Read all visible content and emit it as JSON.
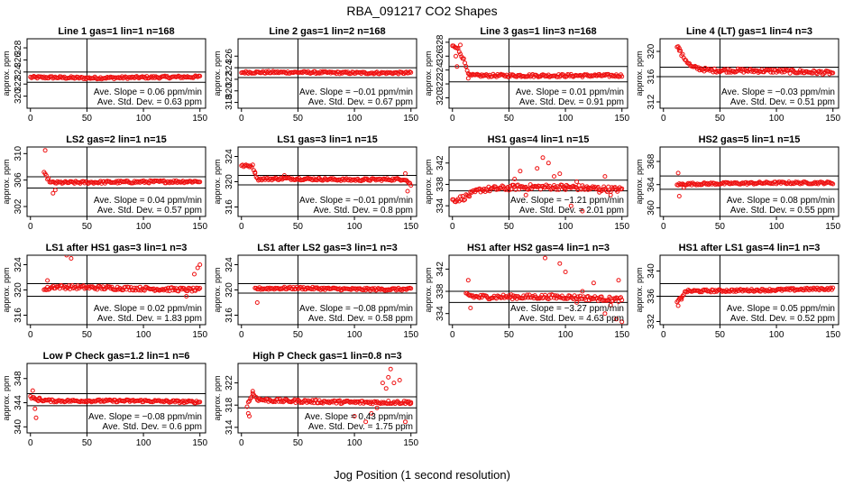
{
  "title": "RBA_091217  CO2 Shapes",
  "xlabel": "Jog Position (1 second resolution)",
  "marker_color": "#ee1111",
  "chart_data": [
    {
      "type": "scatter",
      "title": "Line 1 gas=1 lin=1 n=168",
      "ylabel": "approx. ppm",
      "xlim": [
        -3,
        155
      ],
      "ylim": [
        318,
        329.5
      ],
      "xticks": [
        0,
        50,
        100,
        150
      ],
      "yticks": [
        320,
        322,
        324,
        326,
        328
      ],
      "hlines": [
        324,
        322.3
      ],
      "vline": 50,
      "slope_text": "Ave. Slope =  0.06  ppm/min",
      "std_text": "Ave. Std. Dev. =  0.63  ppm",
      "series": [
        {
          "base": [
            [
              0,
              323.1
            ],
            [
              20,
              323.1
            ],
            [
              50,
              323.0
            ],
            [
              100,
              323.1
            ],
            [
              150,
              323.2
            ]
          ],
          "scatter": 0.2,
          "spikes": []
        }
      ]
    },
    {
      "type": "scatter",
      "title": "Line 2 gas=1 lin=2 n=168",
      "ylabel": "approx. ppm",
      "xlim": [
        -3,
        155
      ],
      "ylim": [
        317,
        329
      ],
      "xticks": [
        0,
        50,
        100,
        150
      ],
      "yticks": [
        318,
        320,
        322,
        324,
        326
      ],
      "hlines": [
        324,
        322.3
      ],
      "vline": 50,
      "slope_text": "Ave. Slope =  −0.01  ppm/min",
      "std_text": "Ave. Std. Dev. =  0.67  ppm",
      "series": [
        {
          "base": [
            [
              0,
              323.2
            ],
            [
              50,
              323.2
            ],
            [
              100,
              323.1
            ],
            [
              150,
              323.1
            ]
          ],
          "scatter": 0.2,
          "spikes": []
        }
      ]
    },
    {
      "type": "scatter",
      "title": "Line 3 gas=1 lin=3 n=168",
      "ylabel": "approx. ppm",
      "xlim": [
        -3,
        155
      ],
      "ylim": [
        318.5,
        328.5
      ],
      "xticks": [
        0,
        50,
        100,
        150
      ],
      "yticks": [
        320,
        322,
        324,
        326,
        328
      ],
      "hlines": [
        324.5,
        322.3
      ],
      "vline": 50,
      "slope_text": "Ave. Slope =  0.01  ppm/min",
      "std_text": "Ave. Std. Dev. =  0.91  ppm",
      "series": [
        {
          "base": [
            [
              0,
              327.5
            ],
            [
              5,
              327.0
            ],
            [
              10,
              325.5
            ],
            [
              15,
              323.2
            ],
            [
              30,
              323.2
            ],
            [
              100,
              323.2
            ],
            [
              150,
              323.2
            ]
          ],
          "scatter": 0.2,
          "spikes": [
            [
              3,
              326
            ],
            [
              4,
              324.5
            ],
            [
              7,
              327.6
            ],
            [
              12,
              324.5
            ],
            [
              14,
              322.8
            ]
          ]
        }
      ]
    },
    {
      "type": "scatter",
      "title": "Line 4 (LT) gas=1 lin=4 n=3",
      "ylabel": "approx. ppm",
      "xlim": [
        -3,
        155
      ],
      "ylim": [
        311,
        322
      ],
      "xticks": [
        0,
        50,
        100,
        150
      ],
      "yticks": [
        312,
        316,
        320
      ],
      "hlines": [
        317.5,
        316
      ],
      "vline": 50,
      "slope_text": "Ave. Slope =  −0.03  ppm/min",
      "std_text": "Ave. Std. Dev. =  0.51  ppm",
      "series": [
        {
          "base": [
            [
              12,
              321
            ],
            [
              16,
              319.5
            ],
            [
              25,
              317.5
            ],
            [
              40,
              317
            ],
            [
              100,
              316.9
            ],
            [
              150,
              316.6
            ]
          ],
          "scatter": 0.3,
          "spikes": [
            [
              14,
              320.5
            ]
          ]
        }
      ]
    },
    {
      "type": "scatter",
      "title": "LS2 gas=2 lin=1 n=15",
      "ylabel": "approx. ppm",
      "xlim": [
        -3,
        155
      ],
      "ylim": [
        300.5,
        311
      ],
      "xticks": [
        0,
        50,
        100,
        150
      ],
      "yticks": [
        302,
        306,
        310
      ],
      "hlines": [
        306.5,
        304.8
      ],
      "vline": 50,
      "slope_text": "Ave. Slope =  0.04  ppm/min",
      "std_text": "Ave. Std. Dev. =  0.57  ppm",
      "series": [
        {
          "base": [
            [
              12,
              307
            ],
            [
              18,
              305.6
            ],
            [
              150,
              305.8
            ]
          ],
          "scatter": 0.2,
          "spikes": [
            [
              13,
              310.5
            ],
            [
              20,
              304
            ],
            [
              22,
              304.5
            ]
          ]
        }
      ]
    },
    {
      "type": "scatter",
      "title": "LS1 gas=3 lin=1 n=15",
      "ylabel": "approx. ppm",
      "xlim": [
        -3,
        155
      ],
      "ylim": [
        314.5,
        325.5
      ],
      "xticks": [
        0,
        50,
        100,
        150
      ],
      "yticks": [
        316,
        320,
        324
      ],
      "hlines": [
        321,
        319.5
      ],
      "vline": 50,
      "slope_text": "Ave. Slope =  −0.01  ppm/min",
      "std_text": "Ave. Std. Dev. =  0.8  ppm",
      "series": [
        {
          "base": [
            [
              0,
              322.5
            ],
            [
              10,
              322.5
            ],
            [
              14,
              320.4
            ],
            [
              40,
              320.5
            ],
            [
              100,
              320.3
            ],
            [
              145,
              320.4
            ],
            [
              150,
              319.5
            ]
          ],
          "scatter": 0.2,
          "spikes": [
            [
              12,
              321.5
            ],
            [
              38,
              321
            ],
            [
              145,
              321.3
            ],
            [
              147,
              318.5
            ]
          ]
        }
      ]
    },
    {
      "type": "scatter",
      "title": "HS1 gas=4 lin=1 n=15",
      "ylabel": "approx. ppm",
      "xlim": [
        -3,
        155
      ],
      "ylim": [
        332,
        345
      ],
      "xticks": [
        0,
        50,
        100,
        150
      ],
      "yticks": [
        334,
        338,
        342
      ],
      "hlines": [
        338.8,
        336.8
      ],
      "vline": 50,
      "slope_text": "Ave. Slope =  −1.21  ppm/min",
      "std_text": "Ave. Std. Dev. =  2.01  ppm",
      "series": [
        {
          "base": [
            [
              0,
              335
            ],
            [
              10,
              335.5
            ],
            [
              25,
              337
            ],
            [
              60,
              337.5
            ],
            [
              100,
              337.5
            ],
            [
              150,
              337
            ]
          ],
          "scatter": 0.5,
          "spikes": [
            [
              55,
              339
            ],
            [
              60,
              340.5
            ],
            [
              65,
              336
            ],
            [
              75,
              341
            ],
            [
              80,
              343
            ],
            [
              85,
              342
            ],
            [
              90,
              339.5
            ],
            [
              95,
              340
            ],
            [
              100,
              337
            ],
            [
              105,
              334
            ],
            [
              110,
              338.5
            ],
            [
              115,
              333
            ],
            [
              120,
              337
            ],
            [
              130,
              336.5
            ],
            [
              135,
              339.5
            ],
            [
              140,
              336
            ]
          ]
        }
      ]
    },
    {
      "type": "scatter",
      "title": "HS2 gas=5 lin=1 n=15",
      "ylabel": "approx. ppm",
      "xlim": [
        -3,
        155
      ],
      "ylim": [
        358.5,
        370.5
      ],
      "xticks": [
        0,
        50,
        100,
        150
      ],
      "yticks": [
        360,
        364,
        368
      ],
      "hlines": [
        365.5,
        363.2
      ],
      "vline": 50,
      "slope_text": "Ave. Slope =  0.08  ppm/min",
      "std_text": "Ave. Std. Dev. =  0.55  ppm",
      "series": [
        {
          "base": [
            [
              12,
              364
            ],
            [
              20,
              364.1
            ],
            [
              100,
              364.3
            ],
            [
              150,
              364.3
            ]
          ],
          "scatter": 0.2,
          "spikes": [
            [
              13,
              366
            ],
            [
              14,
              362
            ],
            [
              18,
              363.5
            ]
          ]
        }
      ]
    },
    {
      "type": "scatter",
      "title": "LS1 after HS1 gas=3 lin=1 n=3",
      "ylabel": "approx. ppm",
      "xlim": [
        -3,
        155
      ],
      "ylim": [
        314.5,
        325.5
      ],
      "xticks": [
        0,
        50,
        100,
        150
      ],
      "yticks": [
        316,
        320,
        324
      ],
      "hlines": [
        321,
        319
      ],
      "vline": 50,
      "slope_text": "Ave. Slope =  0.02  ppm/min",
      "std_text": "Ave. Std. Dev. =  1.83  ppm",
      "series": [
        {
          "base": [
            [
              12,
              320
            ],
            [
              20,
              320.5
            ],
            [
              100,
              320.2
            ],
            [
              150,
              320
            ]
          ],
          "scatter": 0.3,
          "spikes": [
            [
              15,
              321.5
            ],
            [
              32,
              325.5
            ],
            [
              36,
              325
            ],
            [
              145,
              322.5
            ],
            [
              148,
              323.5
            ],
            [
              150,
              324
            ],
            [
              138,
              319
            ]
          ]
        }
      ]
    },
    {
      "type": "scatter",
      "title": "LS1 after LS2 gas=3 lin=1 n=3",
      "ylabel": "approx. ppm",
      "xlim": [
        -3,
        155
      ],
      "ylim": [
        314.5,
        325.5
      ],
      "xticks": [
        0,
        50,
        100,
        150
      ],
      "yticks": [
        316,
        320,
        324
      ],
      "hlines": [
        321,
        319.5
      ],
      "vline": 50,
      "slope_text": "Ave. Slope =  −0.08  ppm/min",
      "std_text": "Ave. Std. Dev. =  0.58  ppm",
      "series": [
        {
          "base": [
            [
              12,
              320.2
            ],
            [
              50,
              320.3
            ],
            [
              100,
              320.1
            ],
            [
              150,
              320.1
            ]
          ],
          "scatter": 0.2,
          "spikes": [
            [
              14,
              318
            ]
          ]
        }
      ]
    },
    {
      "type": "scatter",
      "title": "HS1 after HS2 gas=4 lin=1 n=3",
      "ylabel": "approx. ppm",
      "xlim": [
        -3,
        155
      ],
      "ylim": [
        332,
        344.5
      ],
      "xticks": [
        0,
        50,
        100,
        150
      ],
      "yticks": [
        334,
        338,
        342
      ],
      "hlines": [
        338,
        336
      ],
      "vline": 50,
      "slope_text": "Ave. Slope =  −3.27  ppm/min",
      "std_text": "Ave. Std. Dev. =  4.63  ppm",
      "series": [
        {
          "base": [
            [
              12,
              337.5
            ],
            [
              20,
              337
            ],
            [
              100,
              337
            ],
            [
              150,
              336.5
            ]
          ],
          "scatter": 0.4,
          "spikes": [
            [
              14,
              340
            ],
            [
              16,
              335
            ],
            [
              82,
              344
            ],
            [
              95,
              343
            ],
            [
              100,
              341.5
            ],
            [
              110,
              336
            ],
            [
              115,
              338
            ],
            [
              125,
              339.5
            ],
            [
              135,
              334
            ],
            [
              140,
              335.5
            ],
            [
              145,
              333
            ],
            [
              147,
              340
            ],
            [
              150,
              332.5
            ]
          ]
        }
      ]
    },
    {
      "type": "scatter",
      "title": "HS1 after LS1 gas=4 lin=1 n=3",
      "ylabel": "approx. ppm",
      "xlim": [
        -3,
        155
      ],
      "ylim": [
        331.5,
        342.5
      ],
      "xticks": [
        0,
        50,
        100,
        150
      ],
      "yticks": [
        332,
        336,
        340
      ],
      "hlines": [
        338,
        336
      ],
      "vline": 50,
      "slope_text": "Ave. Slope =  0.05  ppm/min",
      "std_text": "Ave. Std. Dev. =  0.52  ppm",
      "series": [
        {
          "base": [
            [
              12,
              335
            ],
            [
              20,
              336.8
            ],
            [
              100,
              337
            ],
            [
              150,
              337.2
            ]
          ],
          "scatter": 0.2,
          "spikes": [
            [
              13,
              334.5
            ],
            [
              16,
              335.5
            ]
          ]
        }
      ]
    },
    {
      "type": "scatter",
      "title": "Low P Check gas=1.2 lin=1 n=6",
      "ylabel": "approx. ppm",
      "xlim": [
        -3,
        155
      ],
      "ylim": [
        339,
        350.5
      ],
      "xticks": [
        0,
        50,
        100,
        150
      ],
      "yticks": [
        340,
        344,
        348
      ],
      "hlines": [
        345.5,
        343.5
      ],
      "vline": 50,
      "slope_text": "Ave. Slope =  −0.08  ppm/min",
      "std_text": "Ave. Std. Dev. =  0.6  ppm",
      "series": [
        {
          "base": [
            [
              0,
              345
            ],
            [
              5,
              344.5
            ],
            [
              20,
              344.3
            ],
            [
              100,
              344.3
            ],
            [
              150,
              344.1
            ]
          ],
          "scatter": 0.2,
          "spikes": [
            [
              2,
              346
            ],
            [
              4,
              343
            ],
            [
              5,
              341.5
            ],
            [
              8,
              344.8
            ]
          ]
        }
      ]
    },
    {
      "type": "scatter",
      "title": "High P Check gas=1 lin=0.8 n=3",
      "ylabel": "approx. ppm",
      "xlim": [
        -3,
        155
      ],
      "ylim": [
        313,
        325.5
      ],
      "xticks": [
        0,
        50,
        100,
        150
      ],
      "yticks": [
        314,
        318,
        322
      ],
      "hlines": [
        319.5,
        317.5
      ],
      "vline": 50,
      "slope_text": "Ave. Slope =  0.43  ppm/min",
      "std_text": "Ave. Std. Dev. =  1.75  ppm",
      "series": [
        {
          "base": [
            [
              5,
              318
            ],
            [
              10,
              320
            ],
            [
              15,
              319
            ],
            [
              30,
              318.8
            ],
            [
              100,
              318.5
            ],
            [
              150,
              318.5
            ]
          ],
          "scatter": 0.3,
          "spikes": [
            [
              6,
              316.5
            ],
            [
              7,
              316
            ],
            [
              10,
              320.5
            ],
            [
              100,
              316
            ],
            [
              110,
              315
            ],
            [
              115,
              316.5
            ],
            [
              120,
              317.5
            ],
            [
              125,
              322
            ],
            [
              128,
              321
            ],
            [
              130,
              323
            ],
            [
              132,
              324.5
            ],
            [
              135,
              322
            ],
            [
              140,
              322.5
            ],
            [
              145,
              315
            ],
            [
              150,
              318.5
            ]
          ]
        }
      ]
    }
  ]
}
